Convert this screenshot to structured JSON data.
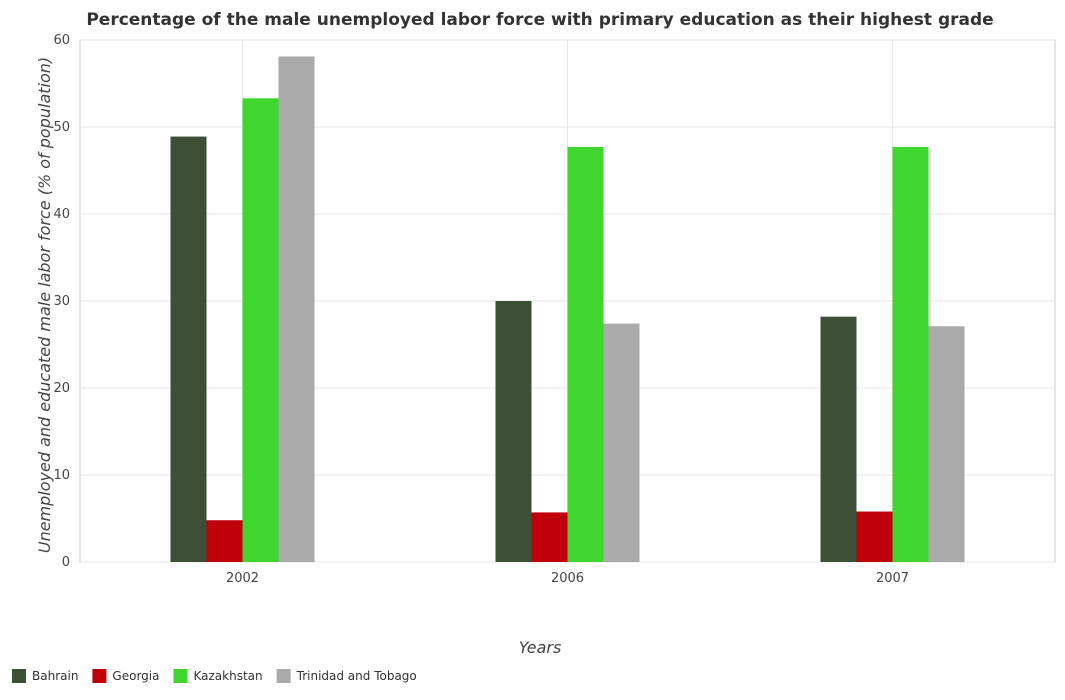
{
  "chart_data": {
    "type": "bar",
    "title": "Percentage of the male unemployed labor force with primary education as their highest grade",
    "xlabel": "Years",
    "ylabel": "Unemployed and educated male labor force (% of population)",
    "categories": [
      "2002",
      "2006",
      "2007"
    ],
    "ylim": [
      0,
      60
    ],
    "yticks": [
      0,
      10,
      20,
      30,
      40,
      50,
      60
    ],
    "grid": true,
    "legend_position": "bottom-left",
    "series": [
      {
        "name": "Bahrain",
        "color": "#3d4f37",
        "values": [
          48.9,
          30.0,
          28.2
        ]
      },
      {
        "name": "Georgia",
        "color": "#c0000a",
        "values": [
          4.8,
          5.7,
          5.8
        ]
      },
      {
        "name": "Kazakhstan",
        "color": "#3ed62f",
        "values": [
          53.3,
          47.7,
          47.7
        ]
      },
      {
        "name": "Trinidad and Tobago",
        "color": "#aaaaaa",
        "values": [
          58.1,
          27.4,
          27.1
        ]
      }
    ]
  }
}
